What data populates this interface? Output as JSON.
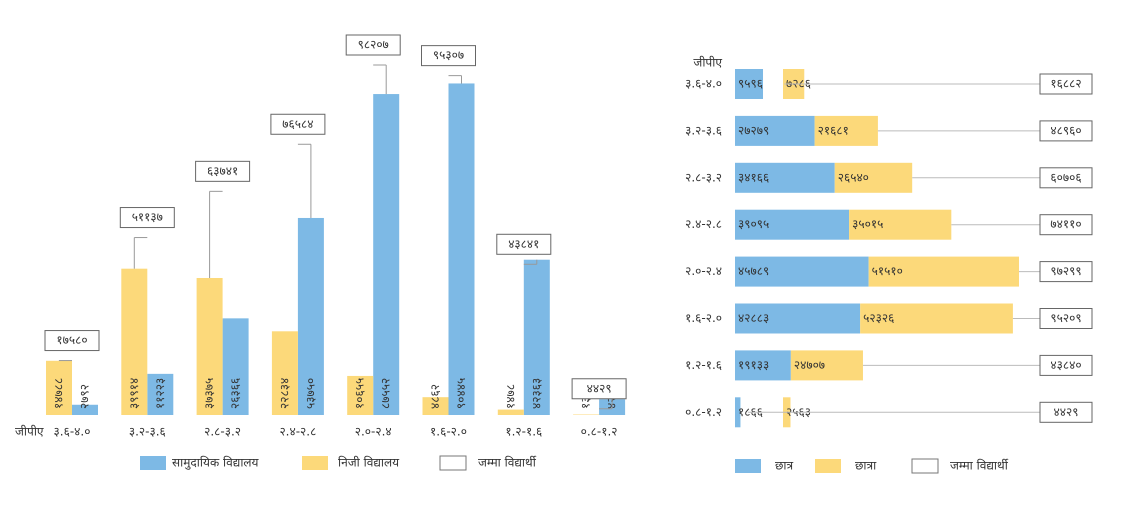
{
  "chart_data": [
    {
      "type": "bar",
      "x_label": "जीपीए",
      "categories": [
        "३.६-४.०",
        "३.२-३.६",
        "२.८-३.२",
        "२.४-२.८",
        "२.०-२.४",
        "१.६-२.०",
        "१.२-१.६",
        "०.८-१.२"
      ],
      "series": [
        {
          "name": "सामुदायिक विद्यालय",
          "color": "#7db9e5",
          "values": [
            2792,
            11223,
            26366,
            53750,
            87552,
            90445,
            42363,
            4296
          ],
          "value_labels": [
            "२७९२",
            "११२२३",
            "२६३६६",
            "५३७५०",
            "८७५५२",
            "९०४४५",
            "४२३६३",
            "४२९६"
          ]
        },
        {
          "name": "निजी विद्यालय",
          "color": "#fcd97a",
          "values": [
            14788,
            39914,
            37375,
            22834,
            10655,
            4862,
            1478,
            133
          ],
          "value_labels": [
            "१४७८८",
            "३९९१४",
            "३७३७५",
            "२२८३४",
            "१०६५५",
            "४८६२",
            "१४७८",
            "१३३"
          ]
        },
        {
          "name": "जम्मा विद्यार्थी",
          "color": "#ffffff",
          "mark": "label-box",
          "values": [
            17580,
            51137,
            63741,
            76584,
            98207,
            95307,
            43841,
            4429
          ],
          "value_labels": [
            "१७५८०",
            "५११३७",
            "६३७४१",
            "७६५८४",
            "९८२०७",
            "९५३०७",
            "४३८४१",
            "४४२९"
          ]
        }
      ]
    },
    {
      "type": "barh",
      "y_label": "जीपीए",
      "categories": [
        "३.६-४.०",
        "३.२-३.६",
        "२.८-३.२",
        "२.४-२.८",
        "२.०-२.४",
        "१.६-२.०",
        "१.२-१.६",
        "०.८-१.२"
      ],
      "series": [
        {
          "name": "छात्र",
          "color": "#7db9e5",
          "values": [
            9596,
            27279,
            34166,
            39095,
            45789,
            42883,
            19133,
            1866
          ],
          "value_labels": [
            "९५९६",
            "२७२७९",
            "३४१६६",
            "३९०९५",
            "४५७८९",
            "४२८८३",
            "१९१३३",
            "१८६६"
          ]
        },
        {
          "name": "छात्रा",
          "color": "#fcd97a",
          "values": [
            7286,
            21681,
            26540,
            35015,
            51510,
            52326,
            24707,
            2563
          ],
          "value_labels": [
            "७२८६",
            "२१६८१",
            "२६५४०",
            "३५०१५",
            "५१५१०",
            "५२३२६",
            "२४७०७",
            "२५६३"
          ]
        },
        {
          "name": "जम्मा विद्यार्थी",
          "color": "#ffffff",
          "mark": "label-box",
          "values": [
            16882,
            48960,
            60706,
            74110,
            97299,
            95209,
            43840,
            4429
          ],
          "value_labels": [
            "१६८८२",
            "४८९६०",
            "६०७०६",
            "७४११०",
            "९७२९९",
            "९५२०९",
            "४३८४०",
            "४४२९"
          ]
        }
      ]
    }
  ]
}
